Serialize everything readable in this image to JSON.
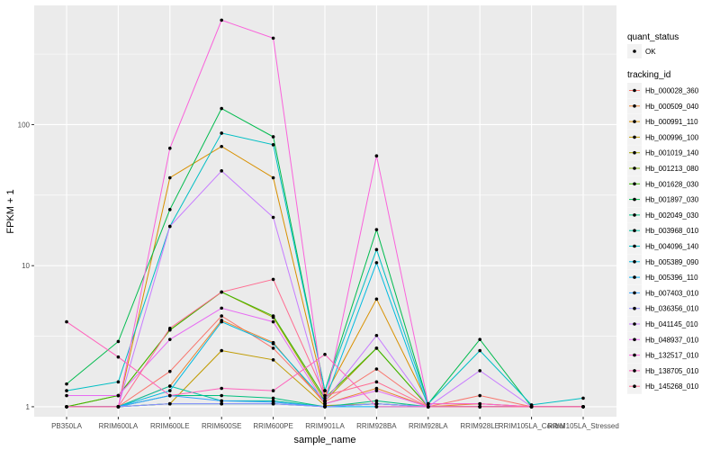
{
  "chart_data": {
    "type": "line",
    "xlabel": "sample_name",
    "ylabel": "FPKM + 1",
    "y_scale": "log",
    "ylim": [
      0.85,
      700
    ],
    "y_ticks": [
      1,
      10,
      100
    ],
    "y_tick_labels": [
      "1",
      "10",
      "100"
    ],
    "grid": true,
    "legend_position": "right",
    "categories": [
      "PB350LA",
      "RRIM600LA",
      "RRIM600LE",
      "RRIM600SE",
      "RRIM600PE",
      "RRIM901LA",
      "RRIM928BA",
      "RRIM928LA",
      "RRIM928LE",
      "RRIM105LA_Control",
      "RRIM105LA_Stressed"
    ],
    "category_labels": [
      "PB350LA",
      "RRIM600LA",
      "RRIM600LE",
      "RRIM600SE",
      "RRIM600PE",
      "RRIM901LA",
      "RRIM928BA",
      "RRIM928LA",
      "RRIM928LE",
      "RRIM105LA_Control",
      "RRIM105LA_Stressed"
    ],
    "legend_quant": {
      "title": "quant_status",
      "entries": [
        "OK"
      ]
    },
    "legend_title": "tracking_id",
    "series": [
      {
        "name": "Hb_000028_360",
        "color": "#F8766D",
        "values": [
          1,
          1,
          1.78,
          4.4,
          2.6,
          1.08,
          1.85,
          1.0,
          1.2,
          1,
          1
        ]
      },
      {
        "name": "Hb_000509_040",
        "color": "#EA8331",
        "values": [
          1,
          1,
          1.4,
          4.1,
          2.85,
          1.05,
          1.35,
          1.0,
          1.05,
          1,
          1
        ]
      },
      {
        "name": "Hb_000991_110",
        "color": "#D89000",
        "values": [
          1,
          1,
          42,
          70,
          42,
          1.2,
          5.8,
          1.05,
          1.05,
          1,
          1
        ]
      },
      {
        "name": "Hb_000996_100",
        "color": "#C09B00",
        "values": [
          1,
          1,
          1.05,
          2.5,
          2.15,
          1.02,
          1.05,
          1.0,
          1.0,
          1,
          1
        ]
      },
      {
        "name": "Hb_001019_140",
        "color": "#A3A500",
        "values": [
          1,
          1.2,
          3.5,
          6.5,
          4.3,
          1.1,
          2.6,
          1.0,
          1.0,
          1,
          1
        ]
      },
      {
        "name": "Hb_001213_080",
        "color": "#7CAE00",
        "values": [
          1,
          1,
          1.05,
          1.05,
          1.05,
          1.0,
          1.05,
          1.0,
          1.0,
          1,
          1
        ]
      },
      {
        "name": "Hb_001628_030",
        "color": "#39B600",
        "values": [
          1,
          1.2,
          3.5,
          6.5,
          4.4,
          1.15,
          2.6,
          1.0,
          1.0,
          1,
          1
        ]
      },
      {
        "name": "Hb_001897_030",
        "color": "#00BB4E",
        "values": [
          1.45,
          2.9,
          25,
          130,
          82,
          1.3,
          18,
          1.05,
          3.0,
          1,
          1
        ]
      },
      {
        "name": "Hb_002049_030",
        "color": "#00BF7D",
        "values": [
          1,
          1,
          1.2,
          1.2,
          1.15,
          1.0,
          1.1,
          1.0,
          1.0,
          1,
          1
        ]
      },
      {
        "name": "Hb_003968_010",
        "color": "#00C1A3",
        "values": [
          1,
          1,
          1.4,
          1.1,
          1.1,
          1.0,
          1.05,
          1.0,
          1.0,
          1,
          1
        ]
      },
      {
        "name": "Hb_004096_140",
        "color": "#00BFC4",
        "values": [
          1.3,
          1.5,
          19,
          87,
          72,
          1.3,
          13,
          1.05,
          2.5,
          1.03,
          1.15
        ]
      },
      {
        "name": "Hb_005389_090",
        "color": "#00BAE0",
        "values": [
          1,
          1,
          1.3,
          4.0,
          2.8,
          1.1,
          10.5,
          1.0,
          1.0,
          1,
          1
        ]
      },
      {
        "name": "Hb_005396_110",
        "color": "#00B0F6",
        "values": [
          1,
          1,
          1.05,
          1.05,
          1.05,
          1.0,
          1.0,
          1.0,
          1.0,
          1,
          1
        ]
      },
      {
        "name": "Hb_007403_010",
        "color": "#35A2FF",
        "values": [
          1,
          1,
          1.2,
          1.1,
          1.08,
          1.0,
          1.05,
          1.0,
          1.0,
          1,
          1
        ]
      },
      {
        "name": "Hb_036356_010",
        "color": "#9590FF",
        "values": [
          1,
          1,
          1.05,
          1.05,
          1.05,
          1.0,
          1.05,
          1.0,
          1.0,
          1,
          1
        ]
      },
      {
        "name": "Hb_041145_010",
        "color": "#C77CFF",
        "values": [
          1,
          1,
          19,
          47,
          22,
          1.1,
          3.2,
          1.0,
          1.8,
          1,
          1
        ]
      },
      {
        "name": "Hb_048937_010",
        "color": "#E76BF3",
        "values": [
          1.2,
          1.2,
          3.0,
          5.0,
          4.0,
          1.05,
          1.3,
          1.0,
          1.0,
          1,
          1
        ]
      },
      {
        "name": "Hb_132517_010",
        "color": "#FA62DB",
        "values": [
          1,
          1,
          68,
          550,
          410,
          1.05,
          60,
          1.05,
          1.05,
          1,
          1
        ]
      },
      {
        "name": "Hb_138705_010",
        "color": "#FF62BC",
        "values": [
          4.0,
          2.25,
          1.2,
          1.35,
          1.3,
          2.35,
          1.0,
          1.0,
          1.0,
          1,
          1
        ]
      },
      {
        "name": "Hb_145268_010",
        "color": "#FF6C91",
        "values": [
          1,
          1,
          3.6,
          6.5,
          8.0,
          1.2,
          1.5,
          1.0,
          1.0,
          1,
          1
        ]
      }
    ]
  }
}
